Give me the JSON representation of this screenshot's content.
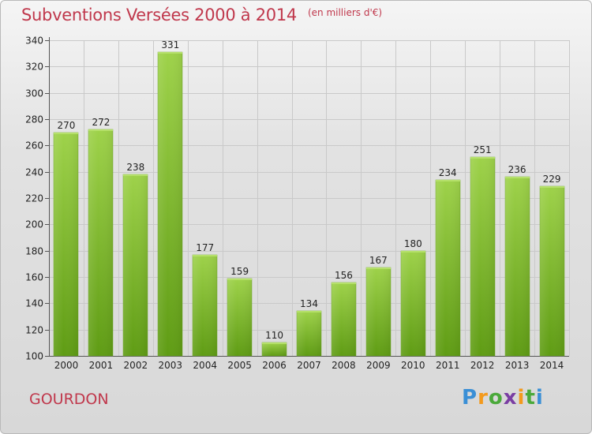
{
  "header": {
    "title": "Subventions Versées 2000 à 2014",
    "subtitle": "(en milliers d'€)"
  },
  "commune": "GOURDON",
  "logo": {
    "text": "Proxiti",
    "colors": [
      "#3a8fd6",
      "#f39a1c",
      "#4aa93a",
      "#7a3ea3"
    ]
  },
  "colors": {
    "title": "#c0384c",
    "bar_top": "#9ed24a",
    "bar_bottom": "#5f9c14",
    "grid": "#c9c9c9"
  },
  "chart_data": {
    "type": "bar",
    "title": "Subventions Versées 2000 à 2014",
    "subtitle": "(en milliers d'€)",
    "categories": [
      "2000",
      "2001",
      "2002",
      "2003",
      "2004",
      "2005",
      "2006",
      "2007",
      "2008",
      "2009",
      "2010",
      "2011",
      "2012",
      "2013",
      "2014"
    ],
    "values": [
      270,
      272,
      238,
      331,
      177,
      159,
      110,
      134,
      156,
      167,
      180,
      234,
      251,
      236,
      229
    ],
    "ylim": [
      100,
      340
    ],
    "yticks": [
      100,
      120,
      140,
      160,
      180,
      200,
      220,
      240,
      260,
      280,
      300,
      320,
      340
    ],
    "grid": true,
    "data_labels": true
  }
}
